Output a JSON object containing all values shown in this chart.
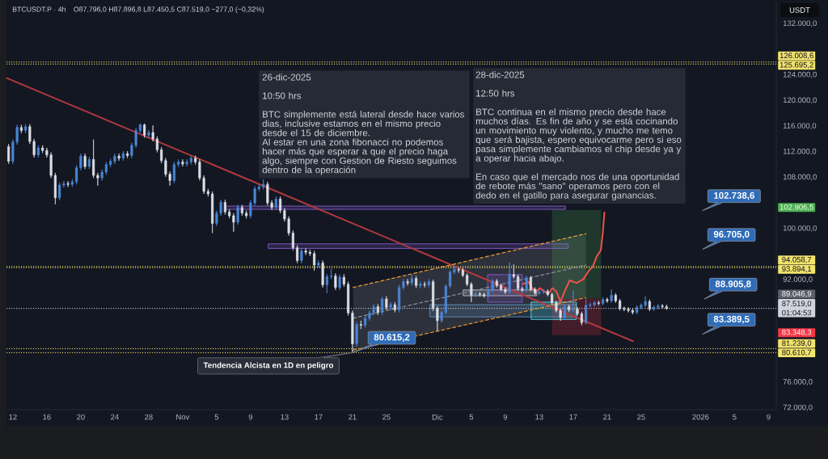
{
  "chart_data": {
    "type": "candlestick",
    "title": "BTCUSDT.P · 4h",
    "subtitle": "O87.796,0 H87.896,8 L87.450,5 C87.519,0 −277,0 (−0,32%)",
    "ylabel": "USDT",
    "x": [
      "2025-10-11T12:00",
      "2025-10-12T00:00",
      "2025-10-12T12:00",
      "2025-10-13T00:00",
      "2025-10-13T12:00",
      "2025-10-14T00:00",
      "2025-10-14T12:00",
      "2025-10-15T00:00",
      "2025-10-15T12:00",
      "2025-10-16T00:00",
      "2025-10-16T12:00",
      "2025-10-17T00:00",
      "2025-10-17T12:00",
      "2025-10-18T00:00",
      "2025-10-18T12:00",
      "2025-10-19T00:00",
      "2025-10-19T12:00",
      "2025-10-20T00:00",
      "2025-10-20T12:00",
      "2025-10-21T00:00",
      "2025-10-21T12:00",
      "2025-10-22T00:00",
      "2025-10-22T12:00",
      "2025-10-23T00:00",
      "2025-10-23T12:00",
      "2025-10-24T00:00",
      "2025-10-24T12:00",
      "2025-10-25T00:00",
      "2025-10-25T12:00",
      "2025-10-26T00:00",
      "2025-10-26T12:00",
      "2025-10-27T00:00",
      "2025-10-27T12:00",
      "2025-10-28T00:00",
      "2025-10-28T12:00",
      "2025-10-29T00:00",
      "2025-10-29T12:00",
      "2025-10-30T00:00",
      "2025-10-30T12:00",
      "2025-10-31T00:00",
      "2025-10-31T12:00",
      "2025-11-01T00:00",
      "2025-11-01T12:00",
      "2025-11-02T00:00",
      "2025-11-02T12:00",
      "2025-11-03T00:00",
      "2025-11-03T12:00",
      "2025-11-04T00:00",
      "2025-11-04T12:00",
      "2025-11-05T00:00",
      "2025-11-05T12:00",
      "2025-11-06T00:00",
      "2025-11-06T12:00",
      "2025-11-07T00:00",
      "2025-11-07T12:00",
      "2025-11-08T00:00",
      "2025-11-08T12:00",
      "2025-11-09T00:00",
      "2025-11-09T12:00",
      "2025-11-10T00:00",
      "2025-11-10T12:00",
      "2025-11-11T00:00",
      "2025-11-11T12:00",
      "2025-11-12T00:00",
      "2025-11-12T12:00",
      "2025-11-13T00:00",
      "2025-11-13T12:00",
      "2025-11-14T00:00",
      "2025-11-14T12:00",
      "2025-11-15T00:00",
      "2025-11-15T12:00",
      "2025-11-16T00:00",
      "2025-11-16T12:00",
      "2025-11-17T00:00",
      "2025-11-17T12:00",
      "2025-11-18T00:00",
      "2025-11-18T12:00",
      "2025-11-19T00:00",
      "2025-11-19T12:00",
      "2025-11-20T00:00",
      "2025-11-20T12:00",
      "2025-11-21T00:00",
      "2025-11-21T12:00",
      "2025-11-22T00:00",
      "2025-11-22T12:00",
      "2025-11-23T00:00",
      "2025-11-23T12:00",
      "2025-11-24T00:00",
      "2025-11-24T12:00",
      "2025-11-25T00:00",
      "2025-11-25T12:00",
      "2025-11-26T00:00",
      "2025-11-26T12:00",
      "2025-11-27T00:00",
      "2025-11-27T12:00",
      "2025-11-28T00:00",
      "2025-11-28T12:00",
      "2025-11-29T00:00",
      "2025-11-29T12:00",
      "2025-11-30T00:00",
      "2025-11-30T12:00",
      "2025-12-01T00:00",
      "2025-12-01T12:00",
      "2025-12-02T00:00",
      "2025-12-02T12:00",
      "2025-12-03T00:00",
      "2025-12-03T12:00",
      "2025-12-04T00:00",
      "2025-12-04T12:00",
      "2025-12-05T00:00",
      "2025-12-05T12:00",
      "2025-12-06T00:00",
      "2025-12-06T12:00",
      "2025-12-07T00:00",
      "2025-12-07T12:00",
      "2025-12-08T00:00",
      "2025-12-08T12:00",
      "2025-12-09T00:00",
      "2025-12-09T12:00",
      "2025-12-10T00:00",
      "2025-12-10T12:00",
      "2025-12-11T00:00",
      "2025-12-11T12:00",
      "2025-12-12T00:00",
      "2025-12-12T12:00",
      "2025-12-13T00:00",
      "2025-12-13T12:00",
      "2025-12-14T00:00",
      "2025-12-14T12:00",
      "2025-12-15T00:00",
      "2025-12-15T12:00",
      "2025-12-16T00:00",
      "2025-12-16T12:00",
      "2025-12-17T00:00",
      "2025-12-17T12:00",
      "2025-12-18T00:00",
      "2025-12-18T12:00",
      "2025-12-19T00:00",
      "2025-12-19T12:00",
      "2025-12-20T00:00",
      "2025-12-20T12:00",
      "2025-12-21T00:00",
      "2025-12-21T12:00",
      "2025-12-22T00:00",
      "2025-12-22T12:00",
      "2025-12-23T00:00",
      "2025-12-23T12:00",
      "2025-12-24T00:00",
      "2025-12-24T12:00",
      "2025-12-25T00:00",
      "2025-12-25T12:00",
      "2025-12-26T00:00",
      "2025-12-26T12:00",
      "2025-12-27T00:00",
      "2025-12-27T12:00",
      "2025-12-28T00:00"
    ],
    "ohlc": [
      [
        112800,
        113200,
        110100,
        110500
      ],
      [
        110500,
        113900,
        110100,
        113500
      ],
      [
        113500,
        116200,
        113100,
        115800
      ],
      [
        115800,
        116200,
        114900,
        115300
      ],
      [
        115300,
        116300,
        114900,
        115900
      ],
      [
        115900,
        116300,
        113200,
        113600
      ],
      [
        113600,
        114000,
        111100,
        111500
      ],
      [
        111500,
        113000,
        111100,
        112600
      ],
      [
        112600,
        113000,
        111800,
        112200
      ],
      [
        112200,
        112600,
        111100,
        111500
      ],
      [
        111500,
        111900,
        107900,
        108300
      ],
      [
        108300,
        108700,
        103800,
        104800
      ],
      [
        104800,
        107200,
        104400,
        106800
      ],
      [
        106800,
        107400,
        106400,
        107000
      ],
      [
        107000,
        107400,
        106500,
        106900
      ],
      [
        106900,
        107700,
        106500,
        107300
      ],
      [
        107300,
        109900,
        106900,
        109500
      ],
      [
        109500,
        111700,
        109100,
        111300
      ],
      [
        111300,
        111700,
        109300,
        109700
      ],
      [
        109700,
        111200,
        109300,
        110800
      ],
      [
        110800,
        113900,
        107900,
        108300
      ],
      [
        108300,
        108700,
        106700,
        107900
      ],
      [
        107900,
        109200,
        107500,
        108800
      ],
      [
        108800,
        110400,
        108400,
        110000
      ],
      [
        110000,
        110900,
        109600,
        110500
      ],
      [
        110500,
        111700,
        110100,
        111300
      ],
      [
        111300,
        111700,
        110600,
        111000
      ],
      [
        111000,
        112100,
        110600,
        111700
      ],
      [
        111700,
        112100,
        111000,
        111400
      ],
      [
        111400,
        113400,
        111000,
        113000
      ],
      [
        113000,
        115700,
        112600,
        115300
      ],
      [
        115300,
        116400,
        114900,
        116200
      ],
      [
        116200,
        116400,
        114200,
        114600
      ],
      [
        114600,
        115400,
        114200,
        115000
      ],
      [
        115000,
        116100,
        113600,
        114000
      ],
      [
        114000,
        114400,
        111900,
        112300
      ],
      [
        112300,
        112700,
        110200,
        110600
      ],
      [
        110600,
        111000,
        108100,
        108500
      ],
      [
        108500,
        108900,
        106700,
        107500
      ],
      [
        107500,
        110400,
        107100,
        110000
      ],
      [
        110000,
        110800,
        109600,
        110400
      ],
      [
        110400,
        110800,
        109700,
        110100
      ],
      [
        110100,
        110800,
        109700,
        110400
      ],
      [
        110400,
        111300,
        110000,
        111000
      ],
      [
        111000,
        111400,
        110000,
        110400
      ],
      [
        110400,
        110800,
        107500,
        107900
      ],
      [
        107900,
        108300,
        105400,
        105800
      ],
      [
        105800,
        106200,
        105000,
        105400
      ],
      [
        105400,
        105800,
        99300,
        100800
      ],
      [
        100800,
        102800,
        100400,
        102400
      ],
      [
        102400,
        104500,
        102000,
        104100
      ],
      [
        104100,
        104500,
        102200,
        102600
      ],
      [
        102600,
        103000,
        101600,
        102000
      ],
      [
        102000,
        102400,
        99500,
        101000
      ],
      [
        101000,
        103700,
        100600,
        103300
      ],
      [
        103300,
        103700,
        102000,
        102400
      ],
      [
        102400,
        102800,
        101600,
        102000
      ],
      [
        102000,
        104400,
        101600,
        104000
      ],
      [
        104000,
        106600,
        103600,
        106200
      ],
      [
        106200,
        106900,
        105800,
        106500
      ],
      [
        106500,
        107700,
        106100,
        106900
      ],
      [
        106900,
        107300,
        103600,
        104000
      ],
      [
        104000,
        104400,
        102900,
        103300
      ],
      [
        103300,
        105000,
        102900,
        104600
      ],
      [
        104600,
        105000,
        102400,
        102800
      ],
      [
        102800,
        103200,
        101100,
        101500
      ],
      [
        101500,
        101900,
        98900,
        99300
      ],
      [
        99300,
        99700,
        96600,
        97000
      ],
      [
        97000,
        97400,
        94600,
        95000
      ],
      [
        95000,
        96900,
        94600,
        96500
      ],
      [
        96500,
        96900,
        95900,
        96300
      ],
      [
        96300,
        96700,
        95700,
        96100
      ],
      [
        96100,
        96500,
        93400,
        94300
      ],
      [
        94300,
        95000,
        93900,
        94600
      ],
      [
        94600,
        95000,
        90800,
        91200
      ],
      [
        91200,
        92900,
        89900,
        92500
      ],
      [
        92500,
        93700,
        92100,
        92600
      ],
      [
        92600,
        93000,
        90400,
        90800
      ],
      [
        90800,
        92800,
        90400,
        92400
      ],
      [
        92400,
        92900,
        90900,
        91300
      ],
      [
        91300,
        91700,
        86400,
        86800
      ],
      [
        86800,
        87200,
        80615.2,
        82000
      ],
      [
        82000,
        85400,
        81600,
        85000
      ],
      [
        85000,
        85600,
        84300,
        84900
      ],
      [
        84900,
        86400,
        84500,
        86000
      ],
      [
        86000,
        87200,
        85600,
        86800
      ],
      [
        86800,
        88200,
        86400,
        87800
      ],
      [
        87800,
        88200,
        86500,
        86900
      ],
      [
        86900,
        89300,
        86500,
        89000
      ],
      [
        89000,
        89400,
        87300,
        87700
      ],
      [
        87700,
        88500,
        87300,
        88100
      ],
      [
        88100,
        88500,
        86900,
        87300
      ],
      [
        87300,
        91200,
        86900,
        90800
      ],
      [
        90800,
        92100,
        90400,
        91700
      ],
      [
        91700,
        92100,
        91100,
        91500
      ],
      [
        91500,
        92800,
        91100,
        92200
      ],
      [
        92200,
        92600,
        90700,
        91100
      ],
      [
        91100,
        91700,
        90700,
        91300
      ],
      [
        91300,
        91700,
        90800,
        91200
      ],
      [
        91200,
        92100,
        90800,
        91700
      ],
      [
        91700,
        92000,
        87100,
        87500
      ],
      [
        87500,
        87900,
        84000,
        85600
      ],
      [
        85600,
        87200,
        85300,
        86900
      ],
      [
        86900,
        91300,
        86600,
        91000
      ],
      [
        91000,
        93500,
        90700,
        93200
      ],
      [
        93200,
        94200,
        92900,
        93600
      ],
      [
        93600,
        93900,
        93100,
        93500
      ],
      [
        93500,
        93800,
        92400,
        92700
      ],
      [
        92700,
        93000,
        91000,
        91300
      ],
      [
        91300,
        91600,
        88500,
        89600
      ],
      [
        89600,
        90100,
        89300,
        89800
      ],
      [
        89800,
        90100,
        89400,
        89700
      ],
      [
        89700,
        90000,
        89200,
        89500
      ],
      [
        89500,
        90700,
        89200,
        90400
      ],
      [
        90400,
        92100,
        90100,
        91800
      ],
      [
        91800,
        92100,
        90800,
        91100
      ],
      [
        91100,
        91400,
        90200,
        90500
      ],
      [
        90500,
        90800,
        89800,
        90100
      ],
      [
        90100,
        94700,
        89800,
        92800
      ],
      [
        92800,
        94400,
        92200,
        92500
      ],
      [
        92500,
        92800,
        90300,
        90600
      ],
      [
        90600,
        90900,
        90100,
        90400
      ],
      [
        90400,
        92600,
        90100,
        92300
      ],
      [
        92300,
        92600,
        90200,
        90500
      ],
      [
        90500,
        90800,
        89600,
        89900
      ],
      [
        89900,
        90400,
        89600,
        90100
      ],
      [
        90100,
        90500,
        89800,
        90200
      ],
      [
        90200,
        90500,
        89400,
        89700
      ],
      [
        89700,
        90000,
        88100,
        88400
      ],
      [
        88400,
        88700,
        86900,
        87200
      ],
      [
        87200,
        87500,
        85600,
        86100
      ],
      [
        86100,
        88100,
        85800,
        87800
      ],
      [
        87800,
        88100,
        87000,
        87300
      ],
      [
        87300,
        90300,
        87000,
        87400
      ],
      [
        87400,
        87700,
        86400,
        86700
      ],
      [
        86700,
        87000,
        84900,
        85300
      ],
      [
        85300,
        89000,
        85000,
        88000
      ],
      [
        88000,
        88400,
        87700,
        88100
      ],
      [
        88100,
        88700,
        87800,
        88400
      ],
      [
        88400,
        88700,
        88000,
        88300
      ],
      [
        88300,
        89200,
        88000,
        88900
      ],
      [
        88900,
        89200,
        88400,
        88700
      ],
      [
        88700,
        90500,
        88400,
        89600
      ],
      [
        89600,
        89900,
        88400,
        88700
      ],
      [
        88700,
        89000,
        87200,
        87500
      ],
      [
        87500,
        87800,
        87100,
        87400
      ],
      [
        87400,
        87700,
        86900,
        87200
      ],
      [
        87200,
        87500,
        86600,
        86900
      ],
      [
        86900,
        88000,
        86600,
        87700
      ],
      [
        87700,
        88300,
        87400,
        88000
      ],
      [
        88000,
        89400,
        87700,
        88600
      ],
      [
        88600,
        88900,
        87100,
        87400
      ],
      [
        87400,
        88000,
        87100,
        87700
      ],
      [
        87700,
        88200,
        87400,
        87900
      ],
      [
        87900,
        88200,
        87500,
        87800
      ],
      [
        87800,
        88100,
        87300,
        87519
      ]
    ],
    "colors": [
      "#dcdfe6",
      "#4a86d6",
      "#4a86d6",
      "#dcdfe6",
      "#4a86d6",
      "#dcdfe6",
      "#dcdfe6",
      "#4a86d6",
      "#dcdfe6",
      "#dcdfe6",
      "#dcdfe6",
      "#dcdfe6",
      "#4a86d6",
      "#4a86d6",
      "#dcdfe6",
      "#4a86d6",
      "#4a86d6",
      "#4a86d6",
      "#dcdfe6",
      "#4a86d6",
      "#dcdfe6",
      "#dcdfe6",
      "#4a86d6",
      "#4a86d6",
      "#4a86d6",
      "#4a86d6",
      "#dcdfe6",
      "#4a86d6",
      "#dcdfe6",
      "#4a86d6",
      "#4a86d6",
      "#4a86d6",
      "#dcdfe6",
      "#4a86d6",
      "#dcdfe6",
      "#dcdfe6",
      "#dcdfe6",
      "#dcdfe6",
      "#dcdfe6",
      "#4a86d6",
      "#4a86d6",
      "#dcdfe6",
      "#4a86d6",
      "#4a86d6",
      "#dcdfe6",
      "#dcdfe6",
      "#dcdfe6",
      "#dcdfe6",
      "#dcdfe6",
      "#4a86d6",
      "#4a86d6",
      "#dcdfe6",
      "#dcdfe6",
      "#dcdfe6",
      "#4a86d6",
      "#dcdfe6",
      "#dcdfe6",
      "#4a86d6",
      "#4a86d6",
      "#4a86d6",
      "#4a86d6",
      "#dcdfe6",
      "#dcdfe6",
      "#4a86d6",
      "#dcdfe6",
      "#dcdfe6",
      "#dcdfe6",
      "#dcdfe6",
      "#dcdfe6",
      "#4a86d6",
      "#dcdfe6",
      "#dcdfe6",
      "#dcdfe6",
      "#4a86d6",
      "#dcdfe6",
      "#4a86d6",
      "#4a86d6",
      "#dcdfe6",
      "#4a86d6",
      "#dcdfe6",
      "#dcdfe6",
      "#dcdfe6",
      "#4a86d6",
      "#dcdfe6",
      "#4a86d6",
      "#4a86d6",
      "#4a86d6",
      "#dcdfe6",
      "#4a86d6",
      "#dcdfe6",
      "#4a86d6",
      "#dcdfe6",
      "#4a86d6",
      "#4a86d6",
      "#dcdfe6",
      "#4a86d6",
      "#dcdfe6",
      "#4a86d6",
      "#dcdfe6",
      "#4a86d6",
      "#dcdfe6",
      "#dcdfe6",
      "#4a86d6",
      "#4a86d6",
      "#4a86d6",
      "#4a86d6",
      "#dcdfe6",
      "#dcdfe6",
      "#dcdfe6",
      "#dcdfe6",
      "#4a86d6",
      "#dcdfe6",
      "#dcdfe6",
      "#4a86d6",
      "#4a86d6",
      "#dcdfe6",
      "#dcdfe6",
      "#dcdfe6",
      "#4a86d6",
      "#dcdfe6",
      "#dcdfe6",
      "#dcdfe6",
      "#4a86d6",
      "#dcdfe6",
      "#dcdfe6",
      "#4a86d6",
      "#4a86d6",
      "#dcdfe6",
      "#dcdfe6",
      "#dcdfe6",
      "#dcdfe6",
      "#4a86d6",
      "#dcdfe6",
      "#4a86d6",
      "#dcdfe6",
      "#dcdfe6",
      "#4a86d6",
      "#4a86d6",
      "#4a86d6",
      "#dcdfe6",
      "#4a86d6",
      "#dcdfe6",
      "#4a86d6",
      "#dcdfe6",
      "#dcdfe6",
      "#dcdfe6",
      "#dcdfe6",
      "#dcdfe6",
      "#4a86d6",
      "#4a86d6",
      "#4a86d6",
      "#dcdfe6",
      "#4a86d6",
      "#4a86d6",
      "#dcdfe6",
      "#dcdfe6"
    ],
    "series": [
      {
        "type": "line",
        "x": [
          "2025-11-21T02:00",
          "2025-12-18T12:00"
        ],
        "values": [
          86000,
          94300
        ],
        "lower": [
          81000,
          89200
        ],
        "upper": [
          90800,
          99200
        ],
        "color": "#8c909a",
        "line_style": "dashed"
      },
      {
        "type": "line",
        "x": [
          "2025-11-30T03:00",
          "2025-12-17T09:00"
        ],
        "values": [
          null,
          null
        ],
        "lower": [
          86200,
          86200
        ],
        "upper": [
          88100,
          88100
        ],
        "color": "#5b8db8",
        "line_style": "solid"
      },
      {
        "type": "line",
        "x": [
          "2025-11-06T00:00",
          "2025-12-16T02:00"
        ],
        "values": [
          null,
          null
        ],
        "lower": [
          103000,
          103000
        ],
        "upper": [
          103500,
          103500
        ],
        "color": "#7e57c2",
        "line_style": "solid"
      },
      {
        "type": "line",
        "x": [
          "2025-11-11T02:00",
          "2025-12-16T10:00"
        ],
        "values": [
          null,
          null
        ],
        "lower": [
          96900,
          96900
        ],
        "upper": [
          97600,
          97600
        ],
        "color": "#7e57c2",
        "line_style": "solid"
      },
      {
        "type": "line",
        "x": [
          "2025-12-14T12:00",
          "2025-12-20T07:00"
        ],
        "values": [
          null,
          null
        ],
        "lower": [
          89046.9,
          89046.9
        ],
        "upper": [
          102906.5,
          102906.5
        ],
        "color": "#4caf50"
      },
      {
        "type": "line",
        "x": [
          "2025-12-14T12:00",
          "2025-12-20T07:00"
        ],
        "values": [
          null,
          null
        ],
        "lower": [
          83348.3,
          83348.3
        ],
        "upper": [
          89046.9,
          89046.9
        ],
        "color": "#f23645"
      },
      {
        "type": "line",
        "x": [
          "2025-12-04T01:00",
          "2025-12-12T17:00"
        ],
        "values": [
          null,
          null
        ],
        "lower": [
          89500,
          89500
        ],
        "upper": [
          90400,
          90400
        ],
        "color": "#b2b5be",
        "line_style": "solid"
      },
      {
        "type": "line",
        "x": [
          "2025-12-06T22:00",
          "2025-12-11T00:00"
        ],
        "values": [
          null,
          null
        ],
        "lower": [
          88500,
          88500
        ],
        "upper": [
          92800,
          92800
        ],
        "color": "#7e57c2",
        "line_style": "solid"
      },
      {
        "type": "line",
        "x": [
          "2025-12-12T01:00",
          "2025-12-17T09:00"
        ],
        "values": [
          null,
          null
        ],
        "lower": [
          85800,
          85800
        ],
        "upper": [
          88500,
          88500
        ],
        "color": "#4dd0e1",
        "line_style": "solid"
      },
      {
        "type": "line",
        "x": [
          "2025-10-11T07:00",
          "2025-12-24T01:00"
        ],
        "values": [
          123500,
          82400
        ],
        "color": "#b2393e"
      },
      {
        "type": "line",
        "x": [
          "2025-11-21T02:00",
          "2025-12-18T12:00"
        ],
        "values": [
          90800,
          99200
        ],
        "color": "#f0a035",
        "line_style": "dashed"
      },
      {
        "type": "line",
        "x": [
          "2025-11-21T02:00",
          "2025-12-18T12:00"
        ],
        "values": [
          81000,
          89200
        ],
        "color": "#e8962a",
        "line_style": "dashed"
      },
      {
        "type": "line",
        "x": [
          "2025-12-11T01:00",
          "2025-12-11T17:00",
          "2025-12-12T04:00",
          "2025-12-12T16:00",
          "2025-12-13T02:00",
          "2025-12-13T14:00",
          "2025-12-14T02:00",
          "2025-12-14T13:00",
          "2025-12-15T00:00",
          "2025-12-15T12:00",
          "2025-12-16T00:00",
          "2025-12-16T14:00",
          "2025-12-17T10:00",
          "2025-12-18T05:00",
          "2025-12-18T20:00",
          "2025-12-19T07:00",
          "2025-12-19T19:00",
          "2025-12-20T06:00",
          "2025-12-20T12:00",
          "2025-12-20T16:00"
        ],
        "values": [
          91300,
          91700,
          90700,
          90200,
          90700,
          90200,
          89800,
          90700,
          90200,
          88600,
          90200,
          91900,
          91500,
          92100,
          93400,
          94000,
          95700,
          96600,
          99500,
          102500
        ],
        "color": "#f0524a"
      }
    ],
    "xlim": [
      "2025-10-11T06:00",
      "2026-01-09T22:00"
    ],
    "ylim": [
      71700,
      135450
    ],
    "xticks": [
      {
        "value": "2025-10-12",
        "label": "12"
      },
      {
        "value": "2025-10-16",
        "label": "16"
      },
      {
        "value": "2025-10-20",
        "label": "20"
      },
      {
        "value": "2025-10-24",
        "label": "24"
      },
      {
        "value": "2025-10-28",
        "label": "28"
      },
      {
        "value": "2025-11-01",
        "label": "Nov"
      },
      {
        "value": "2025-11-05",
        "label": "5"
      },
      {
        "value": "2025-11-09",
        "label": "9"
      },
      {
        "value": "2025-11-13",
        "label": "13"
      },
      {
        "value": "2025-11-17",
        "label": "17"
      },
      {
        "value": "2025-11-21",
        "label": "21"
      },
      {
        "value": "2025-11-25",
        "label": "25"
      },
      {
        "value": "2025-12-01",
        "label": "Dic"
      },
      {
        "value": "2025-12-05",
        "label": "5"
      },
      {
        "value": "2025-12-09",
        "label": "9"
      },
      {
        "value": "2025-12-13",
        "label": "13"
      },
      {
        "value": "2025-12-17",
        "label": "17"
      },
      {
        "value": "2025-12-21",
        "label": "21"
      },
      {
        "value": "2025-12-25",
        "label": "25"
      },
      {
        "value": "2026-01-01",
        "label": "2026"
      },
      {
        "value": "2026-01-05",
        "label": "5"
      },
      {
        "value": "2026-01-09",
        "label": "9"
      }
    ],
    "yticks": [
      {
        "value": 132000,
        "label": "132.000,0"
      },
      {
        "value": 124000,
        "label": "124.000,0"
      },
      {
        "value": 120000,
        "label": "120.000,0"
      },
      {
        "value": 116000,
        "label": "116.000,0"
      },
      {
        "value": 112000,
        "label": "112.000,0"
      },
      {
        "value": 108000,
        "label": "108.000,0"
      },
      {
        "value": 100000,
        "label": "100.000,0"
      },
      {
        "value": 92000,
        "label": "92.000,0"
      },
      {
        "value": 76000,
        "label": "76.000,0"
      },
      {
        "value": 72000,
        "label": "72.000,0"
      }
    ],
    "ref_lines": [
      {
        "axis": "y",
        "value": 126008.6,
        "label": "126.008,6",
        "color": "#f2e36c",
        "line_style": "dotted"
      },
      {
        "axis": "y",
        "value": 125695.2,
        "label": "125.695,2",
        "color": "#f2e36c",
        "line_style": "dotted"
      },
      {
        "axis": "y",
        "value": 94058.7,
        "label": "94.058,7",
        "color": "#f2e36c",
        "line_style": "dotted"
      },
      {
        "axis": "y",
        "value": 93894.1,
        "label": "93.894,1",
        "color": "#f2e36c",
        "line_style": "dotted"
      },
      {
        "axis": "y",
        "value": 87519.0,
        "label": "87.519,0",
        "color": "#d1d4dc",
        "line_style": "dotted"
      },
      {
        "axis": "y",
        "value": 81239.0,
        "label": "81.239,0",
        "color": "#f2e36c",
        "line_style": "dotted"
      },
      {
        "axis": "y",
        "value": 80610.7,
        "label": "80.610,7",
        "color": "#f2e36c",
        "line_style": "dotted"
      }
    ],
    "annotations": [
      "26-dic-2025",
      "10:50 hrs",
      "BTC simplemente está lateral desde hace varios dias, inclusive estamos en el mismo precio desde el 15 de diciembre.",
      "Al estar en una zona fibonacci no podemos hacer más que esperar a que el precio haga algo, siempre con Gestion de Riesto seguimos dentro de la operación",
      "28-dic-2025",
      "12:50 hrs",
      "BTC  continua en el mismo precio desde hace muchos días.  Es fin de año y se está cocinando un movimiento muy violento, y mucho me temo que será bajista, espero equivocarme pero si eso pasa simplemente cambiamos el chip desde ya y a operar hacia abajo.",
      "En caso que el mercado nos de una oportunidad de rebote más \"sano\" operamos pero con el dedo en el gatillo para asegurar ganancias.",
      {
        "text": "Tendencia Alcista en 1D en peligro",
        "x": "2025-11-21T00:00",
        "y": 80615.2
      },
      {
        "text": "80.615,2",
        "x": "2025-11-21T00:00",
        "y": 80615.2
      },
      "102.738,6",
      "96.705,0",
      "88.905,8",
      "83.389,5",
      "102.906,5",
      "89.046,9",
      "83.348,3",
      "01:04:53"
    ]
  }
}
